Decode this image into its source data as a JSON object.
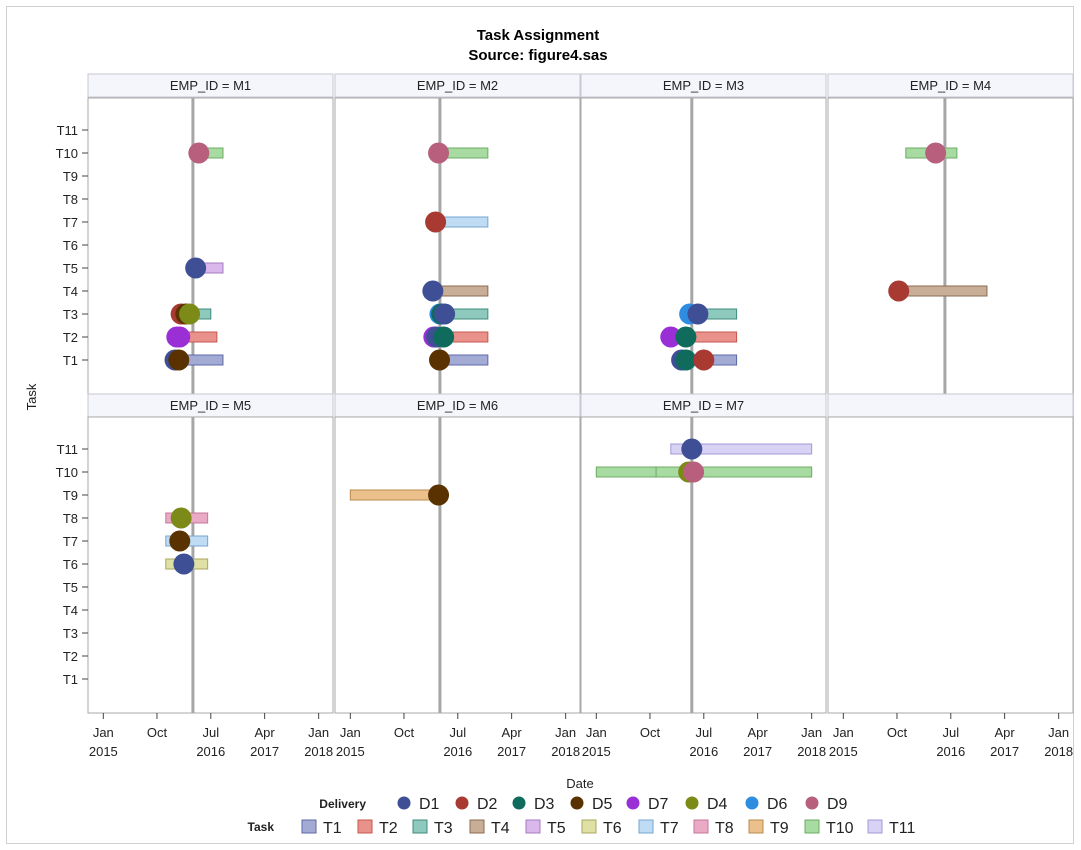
{
  "chart_data": {
    "type": "scatter",
    "title": "Task Assignment",
    "subtitle": "Source: figure4.sas",
    "xlabel": "Date",
    "ylabel": "Task",
    "xlim": [
      "2014-10-15",
      "2018-03-15"
    ],
    "x_ticks": [
      {
        "date": "2015-01-01",
        "line1": "Jan",
        "line2": "2015"
      },
      {
        "date": "2015-10-01",
        "line1": "Oct",
        "line2": ""
      },
      {
        "date": "2016-07-01",
        "line1": "Jul",
        "line2": "2016"
      },
      {
        "date": "2017-04-01",
        "line1": "Apr",
        "line2": "2017"
      },
      {
        "date": "2018-01-01",
        "line1": "Jan",
        "line2": "2018"
      }
    ],
    "y_categories": [
      "T1",
      "T2",
      "T3",
      "T4",
      "T5",
      "T6",
      "T7",
      "T8",
      "T9",
      "T10",
      "T11"
    ],
    "delivery_colors": {
      "D1": "#3f4f96",
      "D2": "#a83a32",
      "D3": "#0f6b5c",
      "D5": "#5a3200",
      "D7": "#9b2fd6",
      "D4": "#7c8a18",
      "D6": "#2e8de0",
      "D9": "#b85f7d"
    },
    "task_colors": {
      "T1": "#a3aad4",
      "T2": "#e9928b",
      "T3": "#8ec9be",
      "T4": "#c8ad97",
      "T5": "#dbb8ec",
      "T6": "#dfe0a3",
      "T7": "#bfdcf4",
      "T8": "#eaaac6",
      "T9": "#ecc08b",
      "T10": "#a8dba1",
      "T11": "#d8d2f4"
    },
    "task_bar_edge_colors": {
      "T1": "#5c6aa8",
      "T2": "#c4574f",
      "T3": "#3f8c7e",
      "T4": "#8d6c50",
      "T5": "#a57bc2",
      "T6": "#a8a85c",
      "T7": "#74a6d1",
      "T8": "#c4779a",
      "T9": "#b98b4d",
      "T10": "#6cab64",
      "T11": "#a098d6"
    },
    "legends": {
      "delivery": {
        "title": "Delivery",
        "items": [
          "D1",
          "D2",
          "D3",
          "D5",
          "D7",
          "D4",
          "D6",
          "D9"
        ]
      },
      "task": {
        "title": "Task",
        "items": [
          "T1",
          "T2",
          "T3",
          "T4",
          "T5",
          "T6",
          "T7",
          "T8",
          "T9",
          "T10",
          "T11"
        ]
      }
    },
    "panels": [
      {
        "label": "EMP_ID = M1",
        "refline": "2016-04-01",
        "bars": [
          {
            "task": "T10",
            "start": "2016-05-01",
            "end": "2016-09-01"
          },
          {
            "task": "T5",
            "start": "2016-03-15",
            "end": "2016-09-01"
          },
          {
            "task": "T3",
            "start": "2016-01-01",
            "end": "2016-07-01"
          },
          {
            "task": "T2",
            "start": "2015-12-15",
            "end": "2016-08-01"
          },
          {
            "task": "T1",
            "start": "2015-12-01",
            "end": "2016-09-01"
          }
        ],
        "points": [
          {
            "task": "T10",
            "date": "2016-05-01",
            "delivery": "D9"
          },
          {
            "task": "T5",
            "date": "2016-04-15",
            "delivery": "D1"
          },
          {
            "task": "T3",
            "date": "2016-02-01",
            "delivery": "D2"
          },
          {
            "task": "T3",
            "date": "2016-02-25",
            "delivery": "D5"
          },
          {
            "task": "T3",
            "date": "2016-03-15",
            "delivery": "D4"
          },
          {
            "task": "T2",
            "date": "2016-01-10",
            "delivery": "D7"
          },
          {
            "task": "T2",
            "date": "2016-01-25",
            "delivery": "D7"
          },
          {
            "task": "T1",
            "date": "2016-01-01",
            "delivery": "D1"
          },
          {
            "task": "T1",
            "date": "2016-01-20",
            "delivery": "D5"
          }
        ]
      },
      {
        "label": "EMP_ID = M2",
        "refline": "2016-04-01",
        "bars": [
          {
            "task": "T10",
            "start": "2016-04-01",
            "end": "2016-12-01"
          },
          {
            "task": "T7",
            "start": "2016-04-01",
            "end": "2016-12-01"
          },
          {
            "task": "T4",
            "start": "2016-04-01",
            "end": "2016-12-01"
          },
          {
            "task": "T3",
            "start": "2016-04-01",
            "end": "2016-12-01"
          },
          {
            "task": "T2",
            "start": "2016-02-01",
            "end": "2016-12-01"
          },
          {
            "task": "T1",
            "start": "2016-04-01",
            "end": "2016-12-01"
          }
        ],
        "points": [
          {
            "task": "T10",
            "date": "2016-03-25",
            "delivery": "D9"
          },
          {
            "task": "T7",
            "date": "2016-03-10",
            "delivery": "D2"
          },
          {
            "task": "T4",
            "date": "2016-02-25",
            "delivery": "D1"
          },
          {
            "task": "T3",
            "date": "2016-04-01",
            "delivery": "D6"
          },
          {
            "task": "T3",
            "date": "2016-04-10",
            "delivery": "D3"
          },
          {
            "task": "T3",
            "date": "2016-04-25",
            "delivery": "D1"
          },
          {
            "task": "T2",
            "date": "2016-03-01",
            "delivery": "D7"
          },
          {
            "task": "T2",
            "date": "2016-03-15",
            "delivery": "D1"
          },
          {
            "task": "T2",
            "date": "2016-04-20",
            "delivery": "D3"
          },
          {
            "task": "T1",
            "date": "2016-03-30",
            "delivery": "D5"
          }
        ]
      },
      {
        "label": "EMP_ID = M3",
        "refline": "2016-05-01",
        "bars": [
          {
            "task": "T3",
            "start": "2016-04-15",
            "end": "2016-12-15"
          },
          {
            "task": "T2",
            "start": "2016-02-01",
            "end": "2016-12-15"
          },
          {
            "task": "T1",
            "start": "2016-02-01",
            "end": "2016-12-15"
          }
        ],
        "points": [
          {
            "task": "T3",
            "date": "2016-04-20",
            "delivery": "D6"
          },
          {
            "task": "T3",
            "date": "2016-06-01",
            "delivery": "D1"
          },
          {
            "task": "T2",
            "date": "2016-01-15",
            "delivery": "D7"
          },
          {
            "task": "T2",
            "date": "2016-04-01",
            "delivery": "D3"
          },
          {
            "task": "T1",
            "date": "2016-03-10",
            "delivery": "D1"
          },
          {
            "task": "T1",
            "date": "2016-04-01",
            "delivery": "D3"
          },
          {
            "task": "T1",
            "date": "2016-07-01",
            "delivery": "D2"
          }
        ]
      },
      {
        "label": "EMP_ID = M4",
        "refline": "2016-06-01",
        "bars": [
          {
            "task": "T10",
            "start": "2015-11-15",
            "end": "2016-08-01"
          },
          {
            "task": "T4",
            "start": "2015-09-01",
            "end": "2017-01-01"
          }
        ],
        "points": [
          {
            "task": "T10",
            "date": "2016-04-15",
            "delivery": "D9"
          },
          {
            "task": "T4",
            "date": "2015-10-10",
            "delivery": "D2"
          }
        ]
      },
      {
        "label": "EMP_ID = M5",
        "refline": "2016-04-01",
        "bars": [
          {
            "task": "T8",
            "start": "2015-11-15",
            "end": "2016-06-15"
          },
          {
            "task": "T7",
            "start": "2015-11-15",
            "end": "2016-06-15"
          },
          {
            "task": "T6",
            "start": "2015-11-15",
            "end": "2016-06-15"
          }
        ],
        "points": [
          {
            "task": "T8",
            "date": "2016-02-01",
            "delivery": "D4"
          },
          {
            "task": "T7",
            "date": "2016-01-25",
            "delivery": "D5"
          },
          {
            "task": "T6",
            "date": "2016-02-15",
            "delivery": "D1"
          }
        ]
      },
      {
        "label": "EMP_ID = M6",
        "refline": "2016-04-01",
        "bars": [
          {
            "task": "T9",
            "start": "2015-01-01",
            "end": "2016-03-15"
          }
        ],
        "points": [
          {
            "task": "T9",
            "date": "2016-03-25",
            "delivery": "D5"
          }
        ]
      },
      {
        "label": "EMP_ID = M7",
        "refline": "2016-05-01",
        "bars": [
          {
            "task": "T11",
            "start": "2016-01-15",
            "end": "2018-01-01"
          },
          {
            "task": "T10",
            "start": "2015-01-01",
            "end": "2018-01-01"
          },
          {
            "task": "T10",
            "start": "2015-11-01",
            "end": "2016-06-01"
          }
        ],
        "points": [
          {
            "task": "T11",
            "date": "2016-05-01",
            "delivery": "D1"
          },
          {
            "task": "T10",
            "date": "2016-04-15",
            "delivery": "D4"
          },
          {
            "task": "T10",
            "date": "2016-05-10",
            "delivery": "D9"
          }
        ]
      }
    ]
  }
}
